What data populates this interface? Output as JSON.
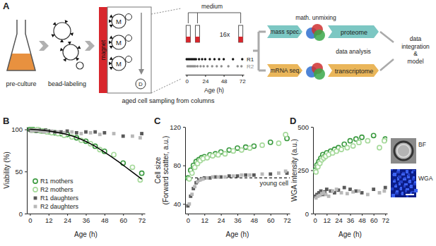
{
  "diagram": {
    "label": "A",
    "steps": [
      "pre-culture",
      "bead-labeling"
    ],
    "magnet": "magnet",
    "mother": "M",
    "daughter": "D",
    "sampling_caption": "aged cell sampling from columns",
    "medium": "medium",
    "repeats": "16x",
    "sampling": {
      "xlim": [
        -2,
        74
      ],
      "xticks": [
        0,
        24,
        48,
        72
      ],
      "xlabel": "Age (h)",
      "series": [
        {
          "name": "R1",
          "color": "#111111",
          "x": [
            0,
            2,
            4,
            6,
            8,
            10,
            12,
            16,
            20,
            24,
            30,
            36,
            42,
            48,
            60,
            72
          ]
        },
        {
          "name": "R2",
          "color": "#8c8c8c",
          "x": [
            1,
            3,
            5,
            7,
            9,
            11,
            14,
            18,
            22,
            27,
            33,
            39,
            45,
            54,
            66,
            71
          ]
        }
      ]
    },
    "methods": [
      "mass spec.",
      "mRNA seq."
    ],
    "unmixing": "math. unmixing",
    "omes": [
      "proteome",
      "transcriptome"
    ],
    "analysis": "data analysis",
    "integration": [
      "data",
      "integration",
      "&",
      "model"
    ]
  },
  "chart_data": [
    {
      "type": "scatter",
      "title": "B",
      "xlabel": "Age (h)",
      "ylabel": [
        "Viability (%)"
      ],
      "xlim": [
        -2,
        74
      ],
      "xticks": [
        0,
        12,
        24,
        36,
        48,
        60,
        72
      ],
      "ylim": [
        0,
        103
      ],
      "yticks": [
        0,
        50,
        100
      ],
      "legend": "bottom-left",
      "series": [
        {
          "name": "R1 mothers",
          "color": "#3a9a3f",
          "marker": "circle-open",
          "x": [
            0,
            2,
            4,
            6,
            8,
            10,
            12,
            16,
            20,
            24,
            30,
            36,
            42,
            48,
            60,
            72
          ],
          "values": [
            100,
            100,
            99,
            99,
            98,
            98,
            97,
            96,
            95,
            94,
            90,
            86,
            80,
            74,
            60,
            48
          ]
        },
        {
          "name": "R2 mothers",
          "color": "#a5d99a",
          "marker": "circle-open",
          "x": [
            1,
            3,
            5,
            7,
            9,
            11,
            14,
            18,
            22,
            27,
            33,
            39,
            45,
            54,
            66,
            71
          ],
          "values": [
            99,
            99,
            100,
            98,
            98,
            97,
            96,
            95,
            93,
            91,
            87,
            83,
            76,
            70,
            55,
            40
          ]
        },
        {
          "name": "R1 daughters",
          "color": "#595959",
          "marker": "square",
          "x": [
            0,
            2,
            4,
            6,
            8,
            10,
            12,
            16,
            20,
            24,
            30,
            36,
            42,
            48,
            60,
            72
          ],
          "values": [
            99,
            99,
            98,
            99,
            98,
            99,
            98,
            97,
            97,
            98,
            96,
            97,
            97,
            96,
            92,
            95
          ]
        },
        {
          "name": "R2 daughters",
          "color": "#b8b8b8",
          "marker": "square",
          "x": [
            1,
            3,
            5,
            7,
            9,
            11,
            14,
            18,
            22,
            27,
            33,
            39,
            45,
            54,
            66,
            71
          ],
          "values": [
            98,
            99,
            99,
            98,
            97,
            98,
            98,
            97,
            96,
            97,
            95,
            96,
            94,
            95,
            92,
            90
          ]
        },
        {
          "type": "line",
          "color": "#000000",
          "line_style": "solid",
          "x": [
            0,
            8,
            16,
            24,
            32,
            40,
            48,
            56,
            64,
            72
          ],
          "values": [
            100,
            99,
            97,
            94,
            89,
            82,
            73,
            63,
            52,
            41
          ]
        }
      ]
    },
    {
      "type": "scatter",
      "title": "C",
      "xlabel": "Age (h)",
      "ylabel": [
        "Cell size",
        "(Forward scatter, a.u.)"
      ],
      "xlim": [
        -2,
        74
      ],
      "xticks": [
        0,
        12,
        24,
        36,
        48,
        60,
        72
      ],
      "ylim": [
        30,
        120
      ],
      "yticks": [
        40,
        80,
        120
      ],
      "reference_line": {
        "value": 67,
        "label": "young cell",
        "line_style": "dashed"
      },
      "series": [
        {
          "color": "#3a9a3f",
          "marker": "circle-open",
          "x": [
            0,
            2,
            4,
            6,
            8,
            10,
            12,
            16,
            20,
            24,
            30,
            36,
            42,
            48,
            60,
            72
          ],
          "values": [
            67,
            75,
            80,
            84,
            86,
            88,
            89,
            91,
            92,
            94,
            96,
            98,
            99,
            100,
            104,
            108
          ]
        },
        {
          "color": "#a5d99a",
          "marker": "circle-open",
          "x": [
            1,
            3,
            5,
            7,
            9,
            11,
            14,
            18,
            22,
            27,
            33,
            39,
            45,
            54,
            66,
            71
          ],
          "values": [
            66,
            72,
            78,
            82,
            85,
            87,
            88,
            90,
            91,
            92,
            95,
            96,
            98,
            101,
            103,
            112
          ]
        },
        {
          "color": "#595959",
          "marker": "square",
          "x": [
            0,
            2,
            4,
            6,
            8,
            10,
            12,
            16,
            20,
            24,
            30,
            36,
            42,
            48,
            60,
            72
          ],
          "values": [
            38,
            48,
            56,
            62,
            65,
            66,
            67,
            67,
            68,
            68,
            69,
            69,
            70,
            70,
            71,
            72
          ]
        },
        {
          "color": "#b8b8b8",
          "marker": "square",
          "x": [
            1,
            3,
            5,
            7,
            9,
            11,
            14,
            18,
            22,
            27,
            33,
            39,
            45,
            54,
            66,
            71
          ],
          "values": [
            40,
            50,
            58,
            63,
            65,
            66,
            67,
            68,
            68,
            68,
            69,
            70,
            70,
            71,
            72,
            74
          ]
        }
      ]
    },
    {
      "type": "scatter",
      "title": "D",
      "xlabel": "Age (h)",
      "ylabel": [
        "WGA intensity (a.u.)"
      ],
      "xlim": [
        -2,
        74
      ],
      "xticks": [
        0,
        12,
        24,
        36,
        48,
        60,
        72
      ],
      "ylim": [
        0,
        500
      ],
      "yticks": [
        0,
        250,
        500
      ],
      "image_labels": [
        "BF",
        "WGA"
      ],
      "series": [
        {
          "color": "#3a9a3f",
          "marker": "circle-open",
          "x": [
            0,
            2,
            4,
            6,
            8,
            10,
            12,
            16,
            20,
            24,
            30,
            36,
            42,
            48,
            60,
            72
          ],
          "values": [
            250,
            280,
            300,
            320,
            340,
            330,
            350,
            360,
            370,
            380,
            400,
            420,
            430,
            440,
            450,
            430
          ]
        },
        {
          "color": "#a5d99a",
          "marker": "circle-open",
          "x": [
            1,
            3,
            5,
            7,
            9,
            11,
            14,
            18,
            22,
            27,
            33,
            39,
            45,
            54,
            66,
            71
          ],
          "values": [
            240,
            270,
            290,
            310,
            320,
            330,
            340,
            350,
            360,
            370,
            380,
            390,
            410,
            420,
            380,
            420
          ]
        },
        {
          "color": "#595959",
          "marker": "square",
          "x": [
            0,
            2,
            4,
            6,
            8,
            10,
            12,
            16,
            20,
            24,
            30,
            36,
            42,
            48,
            60,
            72
          ],
          "values": [
            100,
            110,
            120,
            130,
            110,
            125,
            140,
            130,
            120,
            135,
            150,
            140,
            130,
            120,
            140,
            150
          ]
        },
        {
          "color": "#b8b8b8",
          "marker": "square",
          "x": [
            1,
            3,
            5,
            7,
            9,
            11,
            14,
            18,
            22,
            27,
            33,
            39,
            45,
            54,
            66,
            71
          ],
          "values": [
            90,
            100,
            105,
            115,
            120,
            110,
            100,
            130,
            140,
            120,
            115,
            125,
            130,
            110,
            120,
            130
          ]
        }
      ]
    }
  ]
}
